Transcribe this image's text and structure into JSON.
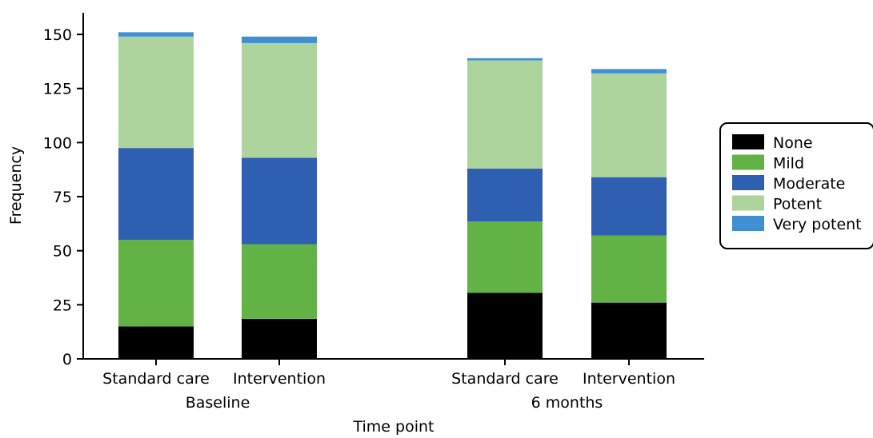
{
  "chart_data": {
    "type": "bar",
    "stacked": true,
    "xlabel": "Time point",
    "ylabel": "Frequency",
    "ylim": [
      0,
      160
    ],
    "yticks": [
      0,
      25,
      50,
      75,
      100,
      125,
      150
    ],
    "groups": [
      {
        "label": "Baseline",
        "bars": [
          "Standard care",
          "Intervention"
        ]
      },
      {
        "label": "6 months",
        "bars": [
          "Standard care",
          "Intervention"
        ]
      }
    ],
    "categories": [
      "Standard care",
      "Intervention",
      "Standard care",
      "Intervention"
    ],
    "series": [
      {
        "name": "None",
        "color": "#000000",
        "values": [
          15,
          18.5,
          30.5,
          26
        ]
      },
      {
        "name": "Mild",
        "color": "#62b246",
        "values": [
          40,
          34.5,
          33,
          31
        ]
      },
      {
        "name": "Moderate",
        "color": "#2f5fb0",
        "values": [
          42.5,
          40,
          24.5,
          27
        ]
      },
      {
        "name": "Potent",
        "color": "#acd49c",
        "values": [
          51.5,
          53,
          50,
          48
        ]
      },
      {
        "name": "Very potent",
        "color": "#3f8fd2",
        "values": [
          2,
          3,
          1,
          2
        ]
      }
    ],
    "legend_position": "right",
    "grid": false
  }
}
